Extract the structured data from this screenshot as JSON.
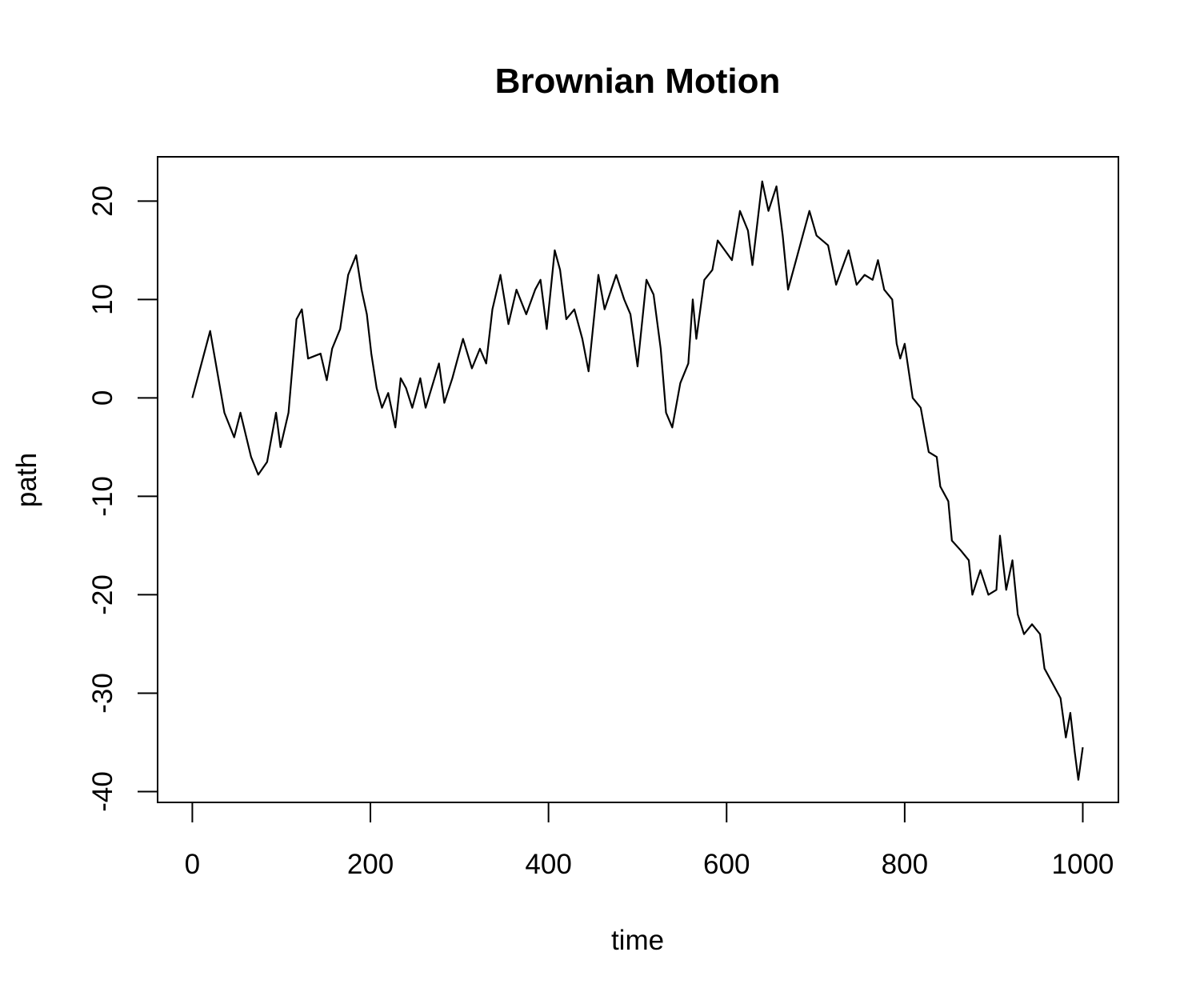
{
  "chart_data": {
    "type": "line",
    "title": "Brownian Motion",
    "x_label": "time",
    "y_label": "path",
    "x": [
      0,
      20,
      36,
      47,
      54,
      66,
      74,
      84,
      94,
      99,
      108,
      117,
      123,
      130,
      144,
      151,
      157,
      166,
      175,
      184,
      190,
      196,
      201,
      207,
      213,
      220,
      228,
      234,
      240,
      247,
      256,
      262,
      277,
      283,
      292,
      304,
      314,
      323,
      330,
      337,
      346,
      355,
      364,
      375,
      385,
      391,
      398,
      407,
      413,
      420,
      429,
      438,
      445,
      456,
      463,
      476,
      485,
      492,
      500,
      510,
      518,
      526,
      532,
      539,
      548,
      557,
      562,
      566,
      575,
      584,
      590,
      598,
      606,
      615,
      624,
      629,
      640,
      647,
      656,
      663,
      669,
      678,
      687,
      693,
      701,
      714,
      723,
      737,
      746,
      755,
      764,
      770,
      777,
      786,
      791,
      795,
      800,
      809,
      818,
      827,
      836,
      840,
      849,
      853,
      863,
      872,
      876,
      885,
      894,
      903,
      907,
      914,
      921,
      927,
      934,
      943,
      952,
      957,
      966,
      975,
      981,
      986,
      991,
      995,
      1000
    ],
    "series": [
      {
        "name": "path",
        "color": "#000000",
        "values": [
          0,
          6.8,
          -1.5,
          -4,
          -1.5,
          -6,
          -7.8,
          -6.5,
          -1.5,
          -5,
          -1.5,
          8,
          9,
          4,
          4.5,
          1.8,
          5,
          7,
          12.5,
          14.5,
          11,
          8.5,
          4.5,
          1,
          -1,
          0.5,
          -3,
          2,
          1,
          -1,
          2,
          -1,
          3.5,
          -0.5,
          2,
          6,
          3,
          5,
          3.5,
          9,
          12.5,
          7.5,
          11,
          8.5,
          11,
          12,
          7,
          15,
          13,
          8,
          9,
          6,
          2.7,
          12.5,
          9,
          12.5,
          10,
          8.5,
          3.2,
          12,
          10.5,
          5,
          -1.5,
          -3,
          1.5,
          3.5,
          10,
          6,
          12,
          13,
          16,
          15,
          14,
          19,
          17,
          13.5,
          22,
          19,
          21.5,
          16.5,
          11,
          14,
          17,
          19,
          16.5,
          15.5,
          11.5,
          15,
          11.5,
          12.5,
          12,
          14,
          11,
          10,
          5.5,
          4,
          5.5,
          0,
          -1,
          -5.5,
          -6,
          -9,
          -10.5,
          -14.5,
          -15.5,
          -16.5,
          -20,
          -17.5,
          -20,
          -19.5,
          -14,
          -19.5,
          -16.5,
          -22,
          -24,
          -23,
          -24,
          -27.5,
          -29,
          -30.5,
          -34.5,
          -32,
          -36,
          -38.8,
          -35.5
        ]
      }
    ],
    "xlim": [
      -39,
      1040
    ],
    "ylim": [
      -41.1,
      24.5
    ],
    "xticks": [
      0,
      200,
      400,
      600,
      800,
      1000
    ],
    "yticks": [
      -40,
      -30,
      -20,
      -10,
      0,
      10,
      20
    ]
  }
}
